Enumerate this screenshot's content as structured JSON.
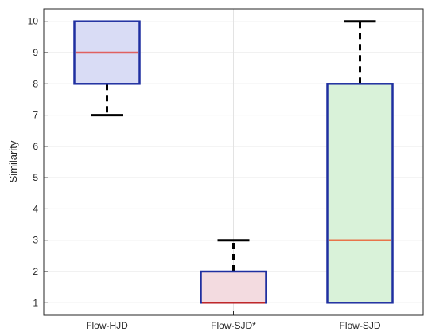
{
  "chart_data": {
    "type": "box",
    "ylabel": "Similarity",
    "categories": [
      "Flow-HJD",
      "Flow-SJD*",
      "Flow-SJD"
    ],
    "ylim": [
      0.6,
      10.4
    ],
    "yticks": [
      1,
      2,
      3,
      4,
      5,
      6,
      7,
      8,
      9,
      10
    ],
    "grid": true,
    "boxes": [
      {
        "name": "Flow-HJD",
        "min": 7,
        "q1": 8,
        "median": 9,
        "q3": 10,
        "max": 10,
        "fill": "#d9dcf5",
        "median_color": "#e06060"
      },
      {
        "name": "Flow-SJD*",
        "min": 1,
        "q1": 1,
        "median": 1,
        "q3": 2,
        "max": 3,
        "fill": "#f3dbe0",
        "median_color": "#c0282a"
      },
      {
        "name": "Flow-SJD",
        "min": 1,
        "q1": 1,
        "median": 3,
        "q3": 8,
        "max": 10,
        "fill": "#d9f2d9",
        "median_color": "#e8744a"
      }
    ]
  }
}
